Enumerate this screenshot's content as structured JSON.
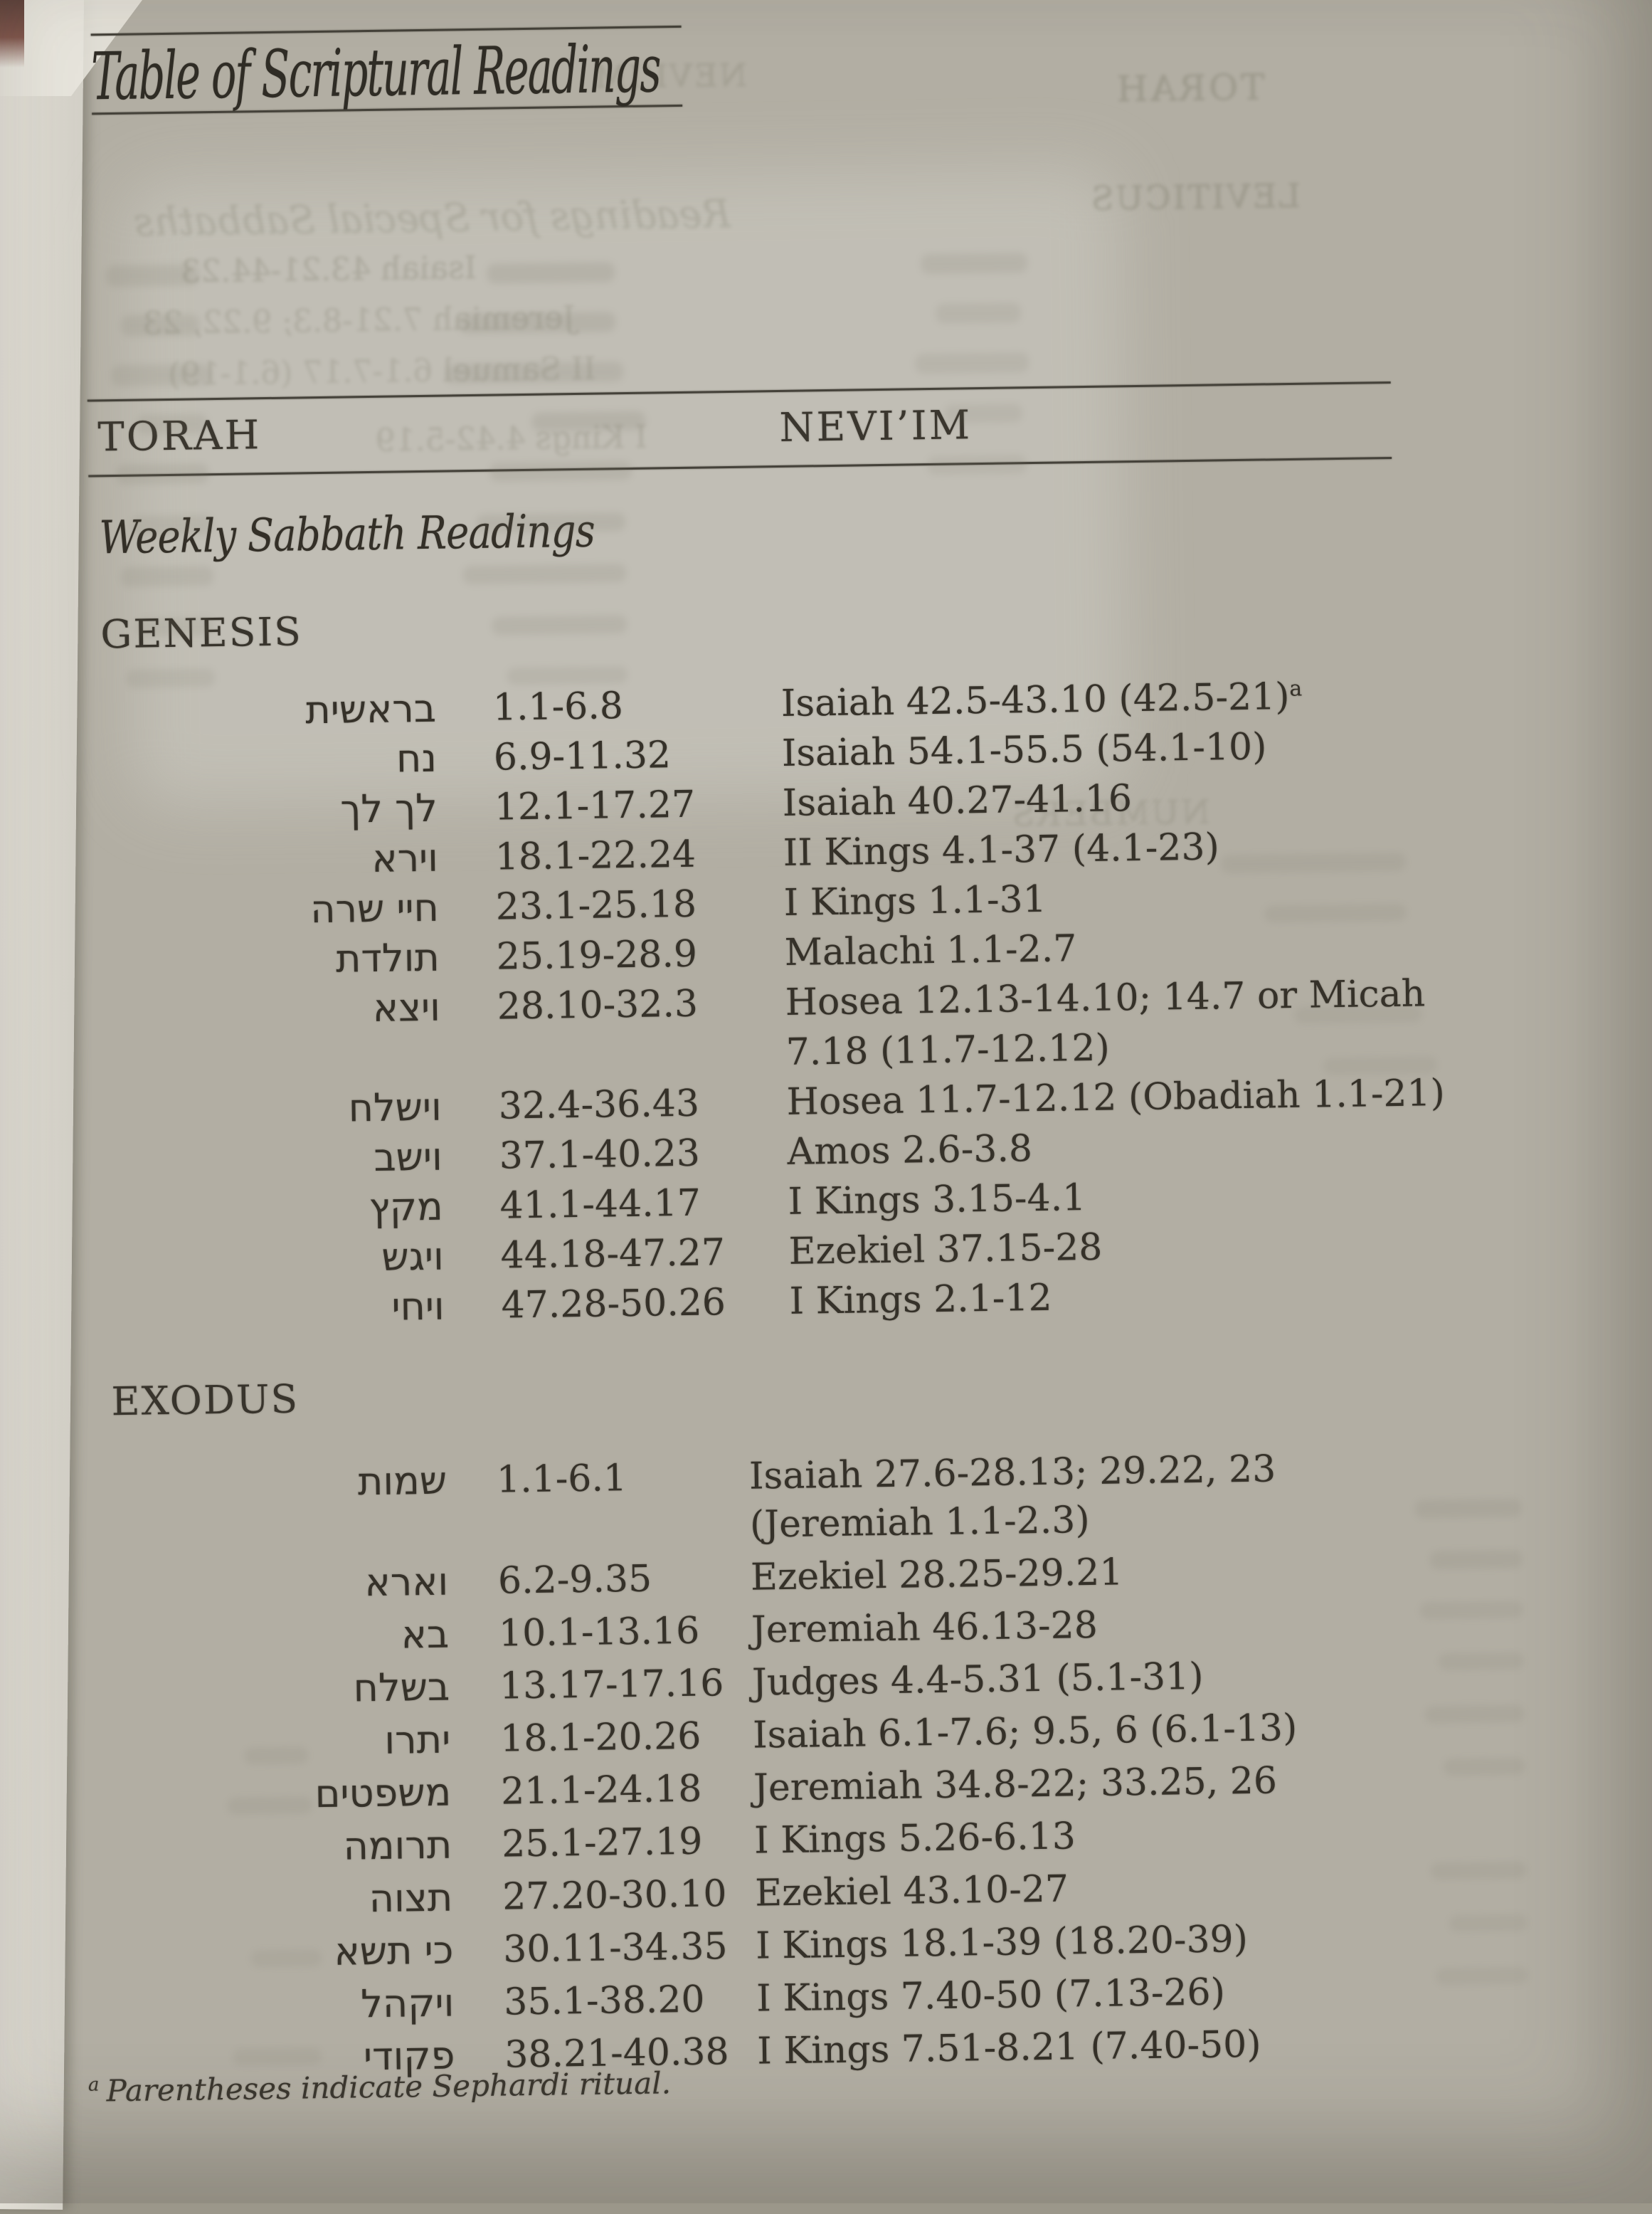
{
  "page": {
    "title": "Table of Scriptural Readings",
    "columns": {
      "torah": "TORAH",
      "neviim": "NEVI’IM"
    },
    "subtitle": "Weekly Sabbath Readings",
    "footnote": {
      "marker": "a",
      "text": "Parentheses indicate Sephardi ritual."
    }
  },
  "sections": [
    {
      "book": "GENESIS",
      "rows": [
        {
          "hebrew": "בראשית",
          "torah": "1.1-6.8",
          "neviim": [
            "Isaiah 42.5-43.10 (42.5-21)"
          ],
          "note": "a"
        },
        {
          "hebrew": "נח",
          "torah": "6.9-11.32",
          "neviim": [
            "Isaiah 54.1-55.5 (54.1-10)"
          ]
        },
        {
          "hebrew": "לך לך",
          "torah": "12.1-17.27",
          "neviim": [
            "Isaiah 40.27-41.16"
          ]
        },
        {
          "hebrew": "וירא",
          "torah": "18.1-22.24",
          "neviim": [
            "II Kings 4.1-37 (4.1-23)"
          ]
        },
        {
          "hebrew": "חיי שרה",
          "torah": "23.1-25.18",
          "neviim": [
            "I Kings 1.1-31"
          ]
        },
        {
          "hebrew": "תולדת",
          "torah": "25.19-28.9",
          "neviim": [
            "Malachi 1.1-2.7"
          ]
        },
        {
          "hebrew": "ויצא",
          "torah": "28.10-32.3",
          "neviim": [
            "Hosea 12.13-14.10; 14.7 or Micah",
            "7.18 (11.7-12.12)"
          ]
        },
        {
          "hebrew": "וישלח",
          "torah": "32.4-36.43",
          "neviim": [
            "Hosea 11.7-12.12 (Obadiah 1.1-21)"
          ]
        },
        {
          "hebrew": "וישב",
          "torah": "37.1-40.23",
          "neviim": [
            "Amos 2.6-3.8"
          ]
        },
        {
          "hebrew": "מקץ",
          "torah": "41.1-44.17",
          "neviim": [
            "I Kings 3.15-4.1"
          ]
        },
        {
          "hebrew": "ויגש",
          "torah": "44.18-47.27",
          "neviim": [
            "Ezekiel 37.15-28"
          ]
        },
        {
          "hebrew": "ויחי",
          "torah": "47.28-50.26",
          "neviim": [
            "I Kings 2.1-12"
          ]
        }
      ]
    },
    {
      "book": "EXODUS",
      "rows": [
        {
          "hebrew": "שמות",
          "torah": "1.1-6.1",
          "neviim": [
            "Isaiah 27.6-28.13; 29.22, 23",
            "(Jeremiah 1.1-2.3)"
          ]
        },
        {
          "hebrew": "וארא",
          "torah": "6.2-9.35",
          "neviim": [
            "Ezekiel 28.25-29.21"
          ]
        },
        {
          "hebrew": "בא",
          "torah": "10.1-13.16",
          "neviim": [
            "Jeremiah 46.13-28"
          ]
        },
        {
          "hebrew": "בשלח",
          "torah": "13.17-17.16",
          "neviim": [
            "Judges 4.4-5.31 (5.1-31)"
          ]
        },
        {
          "hebrew": "יתרו",
          "torah": "18.1-20.26",
          "neviim": [
            "Isaiah 6.1-7.6; 9.5, 6 (6.1-13)"
          ]
        },
        {
          "hebrew": "משפטים",
          "torah": "21.1-24.18",
          "neviim": [
            "Jeremiah 34.8-22; 33.25, 26"
          ]
        },
        {
          "hebrew": "תרומה",
          "torah": "25.1-27.19",
          "neviim": [
            "I Kings 5.26-6.13"
          ]
        },
        {
          "hebrew": "תצוה",
          "torah": "27.20-30.10",
          "neviim": [
            "Ezekiel 43.10-27"
          ]
        },
        {
          "hebrew": "כי תשא",
          "torah": "30.11-34.35",
          "neviim": [
            "I Kings 18.1-39 (18.20-39)"
          ]
        },
        {
          "hebrew": "ויקהל",
          "torah": "35.1-38.20",
          "neviim": [
            "I Kings 7.40-50 (7.13-26)"
          ]
        },
        {
          "hebrew": "פקודי",
          "torah": "38.21-40.38",
          "neviim": [
            "I Kings 7.51-8.21 (7.40-50)"
          ]
        }
      ]
    }
  ],
  "bleedthrough": {
    "torah": "TORAH",
    "leviticus": "LEVITICUS",
    "neviim": "NEVI’IM",
    "numbers": "NUMBERS",
    "special": "Readings for Special Sabbaths",
    "line1": "Isaiah 43.21-44.23",
    "line2": "Jeremiah 7.21-8.3; 9.22, 23",
    "line3": "II Samuel 6.1-7.17 (6.1-19)",
    "line4": "I Kings 4.42-5.19"
  }
}
